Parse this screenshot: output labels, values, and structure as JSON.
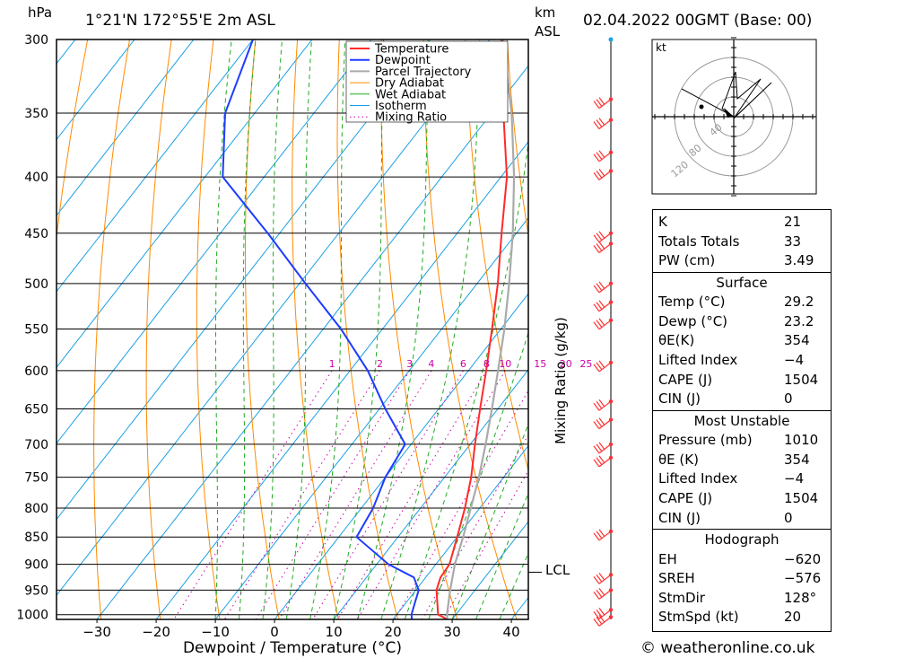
{
  "header": {
    "units_left": "hPa",
    "location": "1°21'N  172°55'E  2m  ASL",
    "units_km": "km",
    "units_asl": "ASL",
    "datetime": "02.04.2022  00GMT  (Base: 00)"
  },
  "footer": {
    "copyright": "© weatheronline.co.uk"
  },
  "chart_data": {
    "type": "line",
    "subtype": "skew-T log-P diagram",
    "xlabel": "Dewpoint / Temperature (°C)",
    "ylabel": "hPa",
    "right_label": "Mixing Ratio (g/kg)",
    "xlim": [
      -40,
      40
    ],
    "ylim": [
      1000,
      300
    ],
    "x_ticks": [
      "−30",
      "−20",
      "−10",
      "0",
      "10",
      "20",
      "30",
      "40"
    ],
    "pressure_levels": [
      300,
      350,
      400,
      450,
      500,
      550,
      600,
      650,
      700,
      750,
      800,
      850,
      900,
      950,
      1000
    ],
    "mixing_ratio_labels": [
      "1",
      "2",
      "3",
      "4",
      "6",
      "8",
      "10",
      "15",
      "20",
      "25"
    ],
    "lcl_label": "LCL",
    "lcl_pressure": 915,
    "legend": [
      "Temperature",
      "Dewpoint",
      "Parcel Trajectory",
      "Dry Adiabat",
      "Wet Adiabat",
      "Isotherm",
      "Mixing Ratio"
    ],
    "legend_position": "top-right",
    "colors": {
      "temperature": "#ff2a2a",
      "dewpoint": "#1e3cff",
      "parcel": "#aaaaaa",
      "dry_adiabat": "#ff8a00",
      "wet_adiabat": "#22aa22",
      "isotherm": "#19a0e6",
      "mixing_ratio": "#cc00aa",
      "wind": "#ff3030"
    },
    "series": [
      {
        "name": "Temperature",
        "points": [
          [
            1010,
            29.2
          ],
          [
            1000,
            27
          ],
          [
            950,
            23.5
          ],
          [
            925,
            22.5
          ],
          [
            900,
            22.3
          ],
          [
            850,
            20
          ],
          [
            800,
            17.5
          ],
          [
            750,
            14.5
          ],
          [
            700,
            10.8
          ],
          [
            650,
            7
          ],
          [
            600,
            3
          ],
          [
            550,
            -1.5
          ],
          [
            500,
            -6.5
          ],
          [
            450,
            -12.5
          ],
          [
            400,
            -19
          ],
          [
            350,
            -28
          ],
          [
            300,
            -38
          ]
        ]
      },
      {
        "name": "Dewpoint",
        "points": [
          [
            1010,
            23.2
          ],
          [
            1000,
            22.5
          ],
          [
            975,
            21.5
          ],
          [
            950,
            20.5
          ],
          [
            925,
            18
          ],
          [
            900,
            12
          ],
          [
            850,
            3
          ],
          [
            800,
            2
          ],
          [
            750,
            0
          ],
          [
            700,
            -1
          ],
          [
            650,
            -9
          ],
          [
            600,
            -17
          ],
          [
            550,
            -27
          ],
          [
            500,
            -39
          ],
          [
            450,
            -52
          ],
          [
            400,
            -67
          ],
          [
            350,
            -75
          ],
          [
            300,
            -80
          ]
        ]
      },
      {
        "name": "Parcel Trajectory",
        "points": [
          [
            1010,
            29.2
          ],
          [
            1000,
            28.5
          ],
          [
            950,
            25.8
          ],
          [
            915,
            24
          ],
          [
            900,
            23.2
          ],
          [
            850,
            21
          ],
          [
            800,
            18.5
          ],
          [
            750,
            15.8
          ],
          [
            700,
            12.6
          ],
          [
            650,
            9
          ],
          [
            600,
            5
          ],
          [
            550,
            0.6
          ],
          [
            500,
            -4.6
          ],
          [
            450,
            -10.6
          ],
          [
            400,
            -17.8
          ],
          [
            350,
            -26.6
          ],
          [
            300,
            -37.8
          ]
        ]
      }
    ],
    "wind_levels_hpa": [
      340,
      355,
      380,
      395,
      450,
      460,
      500,
      520,
      540,
      590,
      640,
      665,
      700,
      720,
      840,
      920,
      950,
      990,
      1005
    ]
  },
  "hodograph": {
    "unit": "kt",
    "ring_labels": [
      "40",
      "80",
      "120"
    ]
  },
  "indices": {
    "general": [
      {
        "k": "K",
        "v": "21"
      },
      {
        "k": "Totals Totals",
        "v": "33"
      },
      {
        "k": "PW (cm)",
        "v": "3.49"
      }
    ],
    "surface_title": "Surface",
    "surface": [
      {
        "k": "Temp (°C)",
        "v": "29.2"
      },
      {
        "k": "Dewp (°C)",
        "v": "23.2"
      },
      {
        "k": "θE(K)",
        "v": "354"
      },
      {
        "k": "Lifted Index",
        "v": "−4"
      },
      {
        "k": "CAPE (J)",
        "v": "1504"
      },
      {
        "k": "CIN (J)",
        "v": "0"
      }
    ],
    "mu_title": "Most Unstable",
    "most_unstable": [
      {
        "k": "Pressure (mb)",
        "v": "1010"
      },
      {
        "k": "θE (K)",
        "v": "354"
      },
      {
        "k": "Lifted Index",
        "v": "−4"
      },
      {
        "k": "CAPE (J)",
        "v": "1504"
      },
      {
        "k": "CIN (J)",
        "v": "0"
      }
    ],
    "hodo_title": "Hodograph",
    "hodo": [
      {
        "k": "EH",
        "v": "−620"
      },
      {
        "k": "SREH",
        "v": "−576"
      },
      {
        "k": "StmDir",
        "v": "128°"
      },
      {
        "k": "StmSpd (kt)",
        "v": "20"
      }
    ]
  }
}
